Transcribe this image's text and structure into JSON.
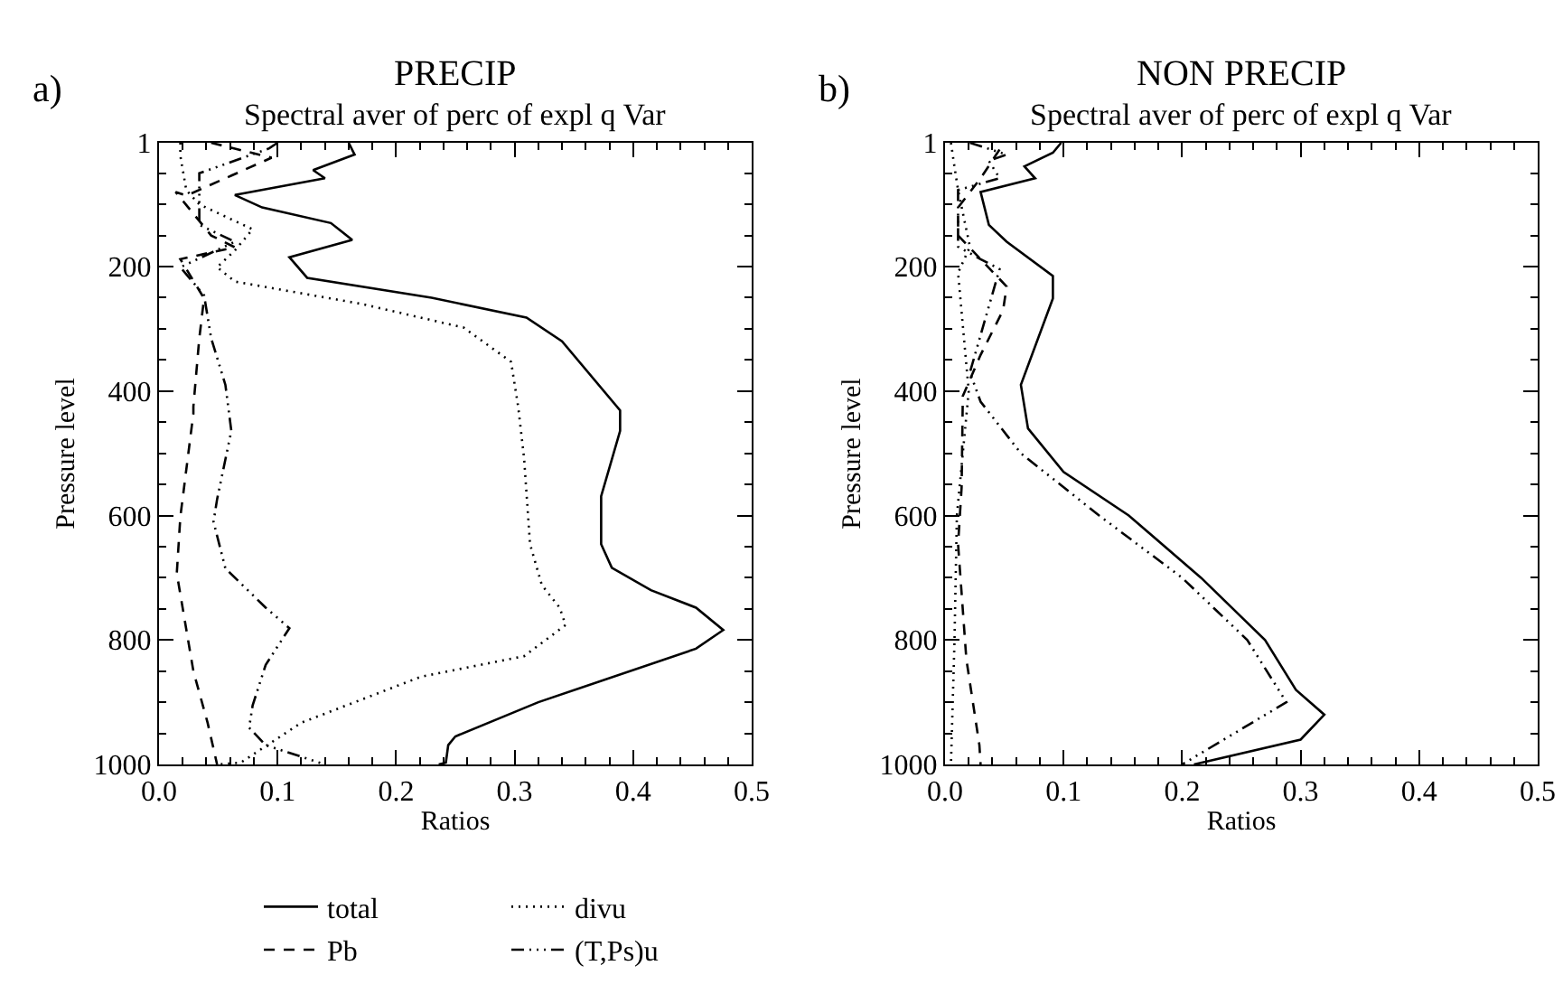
{
  "chart_data": [
    {
      "type": "line",
      "title": "PRECIP",
      "subtitle": "Spectral aver of perc of expl q Var",
      "annotations": [
        "a)"
      ],
      "xlabel": "Ratios",
      "ylabel": "Pressure level",
      "xlim": [
        0,
        0.5
      ],
      "xticks": [
        {
          "value": 0,
          "label": "0.0"
        },
        {
          "value": 0.1,
          "label": "0.1"
        },
        {
          "value": 0.2,
          "label": "0.2"
        },
        {
          "value": 0.3,
          "label": "0.3"
        },
        {
          "value": 0.4,
          "label": "0.4"
        },
        {
          "value": 0.5,
          "label": "0.5"
        }
      ],
      "ylim": [
        1000,
        1
      ],
      "yticks": [
        1,
        200,
        400,
        600,
        800,
        1000
      ],
      "grid": false,
      "legend": "bottom",
      "series": [
        {
          "name": "total",
          "color": "#000000",
          "line_style": "solid",
          "x": [
            0.16,
            0.165,
            0.13,
            0.14,
            0.064,
            0.087,
            0.145,
            0.163,
            0.11,
            0.125,
            0.23,
            0.31,
            0.34,
            0.389,
            0.389,
            0.373,
            0.373,
            0.382,
            0.415,
            0.453,
            0.476,
            0.453,
            0.32,
            0.25,
            0.244,
            0.242,
            0.236
          ],
          "values": [
            1,
            20,
            45,
            58,
            85,
            105,
            130,
            157,
            185,
            218,
            250,
            282,
            320,
            431,
            464,
            569,
            646,
            684,
            720,
            748,
            784,
            814,
            900,
            955,
            969,
            997,
            1000
          ]
        },
        {
          "name": "divu",
          "color": "#000000",
          "line_style": "dotted",
          "x": [
            0.018,
            0.018,
            0.023,
            0.034,
            0.079,
            0.064,
            0.049,
            0.064,
            0.171,
            0.257,
            0.297,
            0.303,
            0.308,
            0.313,
            0.323,
            0.338,
            0.343,
            0.308,
            0.221,
            0.12,
            0.069,
            0.05
          ],
          "values": [
            1,
            22,
            77,
            100,
            140,
            174,
            201,
            224,
            260,
            298,
            353,
            425,
            508,
            646,
            712,
            748,
            776,
            826,
            859,
            933,
            997,
            1000
          ]
        },
        {
          "name": "Pb",
          "color": "#000000",
          "line_style": "dashed",
          "x": [
            0.044,
            0.095,
            0.023,
            0.014,
            0.044,
            0.064,
            0.018,
            0.038,
            0.034,
            0.029,
            0.029,
            0.018,
            0.015,
            0.029,
            0.041,
            0.049
          ],
          "values": [
            1,
            25,
            86,
            80,
            150,
            169,
            188,
            251,
            315,
            425,
            436,
            602,
            693,
            850,
            933,
            1000
          ]
        },
        {
          "name": "(T,Ps)u",
          "color": "#000000",
          "line_style": "dashdot",
          "x": [
            0.1,
            0.093,
            0.034,
            0.034,
            0.064,
            0.018,
            0.038,
            0.044,
            0.056,
            0.061,
            0.049,
            0.046,
            0.056,
            0.09,
            0.11,
            0.09,
            0.079,
            0.076,
            0.09,
            0.14
          ],
          "values": [
            1,
            10,
            50,
            133,
            160,
            201,
            246,
            315,
            390,
            464,
            574,
            610,
            685,
            748,
            781,
            840,
            905,
            941,
            969,
            1000
          ]
        }
      ]
    },
    {
      "type": "line",
      "title": "NON PRECIP",
      "subtitle": "Spectral aver of perc of expl q Var",
      "annotations": [
        "b)"
      ],
      "xlabel": "Ratios",
      "ylabel": "Pressure level",
      "xlim": [
        0,
        0.5
      ],
      "xticks": [
        {
          "value": 0,
          "label": "0.0"
        },
        {
          "value": 0.1,
          "label": "0.1"
        },
        {
          "value": 0.2,
          "label": "0.2"
        },
        {
          "value": 0.3,
          "label": "0.3"
        },
        {
          "value": 0.4,
          "label": "0.4"
        },
        {
          "value": 0.5,
          "label": "0.5"
        }
      ],
      "ylim": [
        1000,
        1
      ],
      "yticks": [
        1,
        200,
        400,
        600,
        800,
        1000
      ],
      "grid": false,
      "series": [
        {
          "color": "#000000",
          "line_style": "solid",
          "x": [
            0.098,
            0.091,
            0.067,
            0.076,
            0.03,
            0.037,
            0.052,
            0.091,
            0.091,
            0.064,
            0.07,
            0.1,
            0.155,
            0.216,
            0.27,
            0.296,
            0.32,
            0.3,
            0.21
          ],
          "values": [
            1,
            17,
            39,
            58,
            80,
            133,
            160,
            215,
            251,
            390,
            460,
            530,
            600,
            700,
            800,
            880,
            920,
            960,
            1000
          ]
        },
        {
          "color": "#000000",
          "line_style": "dotted",
          "x": [
            0.005,
            0.008,
            0.011,
            0.021,
            0.011,
            0.02,
            0.01,
            0.008,
            0.005
          ],
          "values": [
            1,
            40,
            77,
            168,
            210,
            400,
            600,
            800,
            1000
          ]
        },
        {
          "color": "#000000",
          "line_style": "dashed",
          "x": [
            0.046,
            0.03,
            0.011,
            0.011,
            0.052,
            0.049,
            0.03,
            0.015,
            0.014,
            0.011,
            0.018,
            0.029,
            0.03
          ],
          "values": [
            12,
            58,
            105,
            150,
            232,
            270,
            342,
            408,
            555,
            646,
            831,
            969,
            1000
          ]
        },
        {
          "color": "#000000",
          "line_style": "dashdot",
          "x": [
            0.021,
            0.052,
            0.037,
            0.046,
            0.011,
            0.011,
            0.011,
            0.03,
            0.046,
            0.021,
            0.03,
            0.064,
            0.13,
            0.2,
            0.255,
            0.288,
            0.2
          ],
          "values": [
            1,
            20,
            30,
            58,
            77,
            130,
            168,
            188,
            204,
            370,
            417,
            500,
            600,
            700,
            800,
            900,
            1000
          ]
        }
      ]
    }
  ]
}
